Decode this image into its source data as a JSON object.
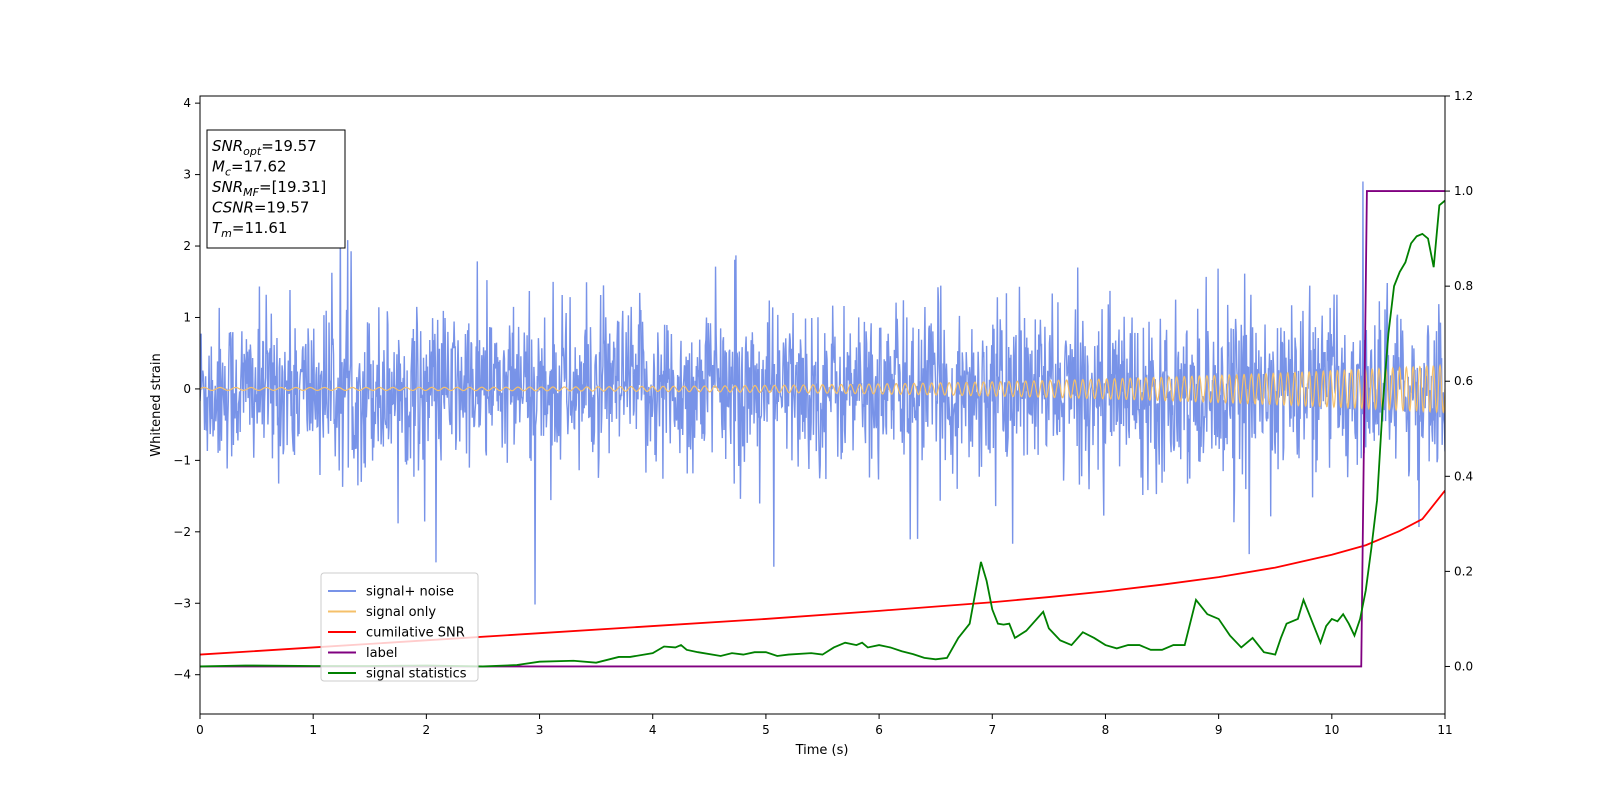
{
  "chart_data": {
    "type": "line",
    "xlabel": "Time (s)",
    "ylabel": "Whitened strain",
    "xlim": [
      0,
      11
    ],
    "ylim": [
      -4.55,
      4.1
    ],
    "y2lim": [
      -0.1,
      1.2
    ],
    "x_ticks": [
      "0",
      "1",
      "2",
      "3",
      "4",
      "5",
      "6",
      "7",
      "8",
      "9",
      "10",
      "11"
    ],
    "y_ticks": [
      "−4",
      "−3",
      "−2",
      "−1",
      "0",
      "1",
      "2",
      "3",
      "4"
    ],
    "y2_ticks": [
      "0.0",
      "0.2",
      "0.4",
      "0.6",
      "0.8",
      "1.0",
      "1.2"
    ],
    "grid": false,
    "legend_position": "lower-left",
    "annotation": {
      "lines": [
        {
          "var": "SNR",
          "sub": "opt",
          "value": "=19.57"
        },
        {
          "var": "M",
          "sub": "c",
          "value": "=17.62"
        },
        {
          "var": "SNR",
          "sub": "MF",
          "value": "=[19.31]"
        },
        {
          "var": "CSNR",
          "sub": "",
          "value": "=19.57"
        },
        {
          "var": "T",
          "sub": "m",
          "value": "=11.61"
        }
      ]
    },
    "series": [
      {
        "name": "signal+ noise",
        "axis": "left",
        "color": "#7893e8",
        "noise_sigma": 0.55,
        "x_start": 0,
        "x_end": 11,
        "n_samples": 2200
      },
      {
        "name": "signal only",
        "axis": "left",
        "color": "#f5c06a",
        "amplitude_start": 0.02,
        "amplitude_end": 0.33,
        "x_start": 0,
        "x_end": 11
      },
      {
        "name": "cumilative SNR",
        "axis": "right",
        "color": "#ff0000",
        "x": [
          0,
          1,
          2,
          3,
          4,
          5,
          6,
          7,
          7.5,
          8,
          8.5,
          9,
          9.5,
          10,
          10.3,
          10.6,
          10.8,
          11
        ],
        "y": [
          0.025,
          0.04,
          0.055,
          0.07,
          0.085,
          0.1,
          0.117,
          0.135,
          0.146,
          0.158,
          0.172,
          0.188,
          0.208,
          0.235,
          0.255,
          0.285,
          0.31,
          0.37
        ]
      },
      {
        "name": "label",
        "axis": "right",
        "color": "#800080",
        "x": [
          0,
          10.26,
          10.31,
          11
        ],
        "y": [
          0,
          0,
          1,
          1
        ]
      },
      {
        "name": "signal statistics",
        "axis": "right",
        "color": "#008000",
        "x": [
          0,
          0.4,
          1,
          1.5,
          2,
          2.5,
          2.8,
          3,
          3.3,
          3.5,
          3.7,
          3.8,
          4,
          4.1,
          4.2,
          4.25,
          4.3,
          4.4,
          4.6,
          4.7,
          4.8,
          4.9,
          5,
          5.1,
          5.2,
          5.4,
          5.5,
          5.6,
          5.7,
          5.8,
          5.85,
          5.9,
          6,
          6.1,
          6.2,
          6.3,
          6.4,
          6.5,
          6.6,
          6.7,
          6.8,
          6.9,
          6.95,
          7.0,
          7.05,
          7.1,
          7.15,
          7.2,
          7.3,
          7.45,
          7.5,
          7.6,
          7.7,
          7.8,
          7.9,
          8.0,
          8.1,
          8.2,
          8.3,
          8.4,
          8.5,
          8.6,
          8.7,
          8.8,
          8.9,
          9.0,
          9.1,
          9.2,
          9.3,
          9.4,
          9.5,
          9.55,
          9.6,
          9.7,
          9.75,
          9.8,
          9.9,
          9.95,
          10.0,
          10.05,
          10.1,
          10.15,
          10.2,
          10.25,
          10.3,
          10.35,
          10.4,
          10.45,
          10.5,
          10.55,
          10.6,
          10.65,
          10.7,
          10.75,
          10.8,
          10.85,
          10.9,
          10.95,
          11.0
        ],
        "y": [
          0.0,
          0.002,
          0.001,
          0.001,
          0.002,
          0.0,
          0.003,
          0.01,
          0.012,
          0.008,
          0.02,
          0.02,
          0.028,
          0.042,
          0.04,
          0.045,
          0.035,
          0.03,
          0.022,
          0.028,
          0.025,
          0.03,
          0.03,
          0.022,
          0.025,
          0.028,
          0.025,
          0.04,
          0.05,
          0.045,
          0.05,
          0.04,
          0.045,
          0.04,
          0.032,
          0.026,
          0.018,
          0.015,
          0.018,
          0.06,
          0.09,
          0.22,
          0.18,
          0.12,
          0.09,
          0.088,
          0.09,
          0.06,
          0.075,
          0.115,
          0.08,
          0.055,
          0.045,
          0.072,
          0.06,
          0.045,
          0.038,
          0.045,
          0.045,
          0.035,
          0.035,
          0.045,
          0.045,
          0.14,
          0.11,
          0.1,
          0.065,
          0.04,
          0.06,
          0.03,
          0.025,
          0.06,
          0.09,
          0.1,
          0.14,
          0.11,
          0.05,
          0.085,
          0.1,
          0.095,
          0.11,
          0.09,
          0.065,
          0.1,
          0.16,
          0.25,
          0.35,
          0.55,
          0.7,
          0.8,
          0.83,
          0.85,
          0.89,
          0.905,
          0.91,
          0.9,
          0.84,
          0.97,
          0.98
        ]
      }
    ]
  }
}
